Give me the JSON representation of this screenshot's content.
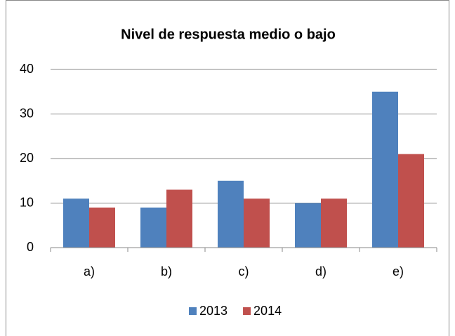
{
  "chart_data": {
    "type": "bar",
    "title": "Nivel de respuesta medio o bajo",
    "categories": [
      "a)",
      "b)",
      "c)",
      "d)",
      "e)"
    ],
    "series": [
      {
        "name": "2013",
        "color": "#4f81bd",
        "values": [
          11,
          9,
          15,
          10,
          35
        ]
      },
      {
        "name": "2014",
        "color": "#c0504d",
        "values": [
          9,
          13,
          11,
          11,
          21
        ]
      }
    ],
    "ylim": [
      0,
      40
    ],
    "yticks": [
      0,
      10,
      20,
      30,
      40
    ],
    "grid": true,
    "legend": "bottom"
  }
}
